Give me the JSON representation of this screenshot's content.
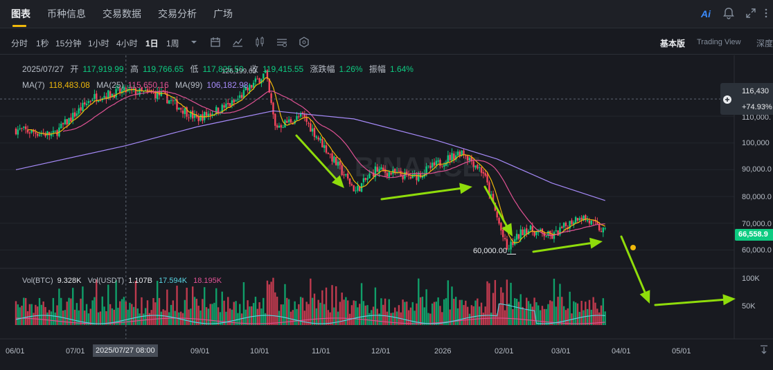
{
  "nav": {
    "tabs": [
      "图表",
      "币种信息",
      "交易数据",
      "交易分析",
      "广场"
    ],
    "active": 0,
    "ai_label": "Ai"
  },
  "toolbar": {
    "intervals": [
      "分时",
      "1秒",
      "15分钟",
      "1小时",
      "4小时",
      "1日",
      "1周"
    ],
    "active_interval": 5,
    "views": [
      "基本版",
      "Trading View",
      "深度"
    ],
    "active_view": 0
  },
  "ohlc": {
    "date": "2025/07/27",
    "open_label": "开",
    "open": "117,919.99",
    "high_label": "高",
    "high": "119,766.65",
    "low_label": "低",
    "low": "117,825.50",
    "close_label": "收",
    "close": "119,415.55",
    "change_label": "涨跌幅",
    "change": "1.26%",
    "amp_label": "振幅",
    "amp": "1.64%"
  },
  "ma": {
    "ma7_label": "MA(7)",
    "ma7": "118,483.08",
    "ma25_label": "MA(25)",
    "ma25": "115,650.16",
    "ma99_label": "MA(99)",
    "ma99": "106,182.98"
  },
  "vol": {
    "btc_label": "Vol(BTC)",
    "btc": "9.328K",
    "usdt_label": "Vol(USDT)",
    "usdt": "1.107B",
    "ma1": "17.594K",
    "ma2": "18.195K"
  },
  "price_panel": {
    "crosshair_price": "116,430",
    "crosshair_pct": "+74.93%",
    "last_price": "66,558.9"
  },
  "annotations": {
    "high_label": "126,199.63",
    "low_label": "60,000.00"
  },
  "colors": {
    "up": "#0ecb81",
    "down": "#f6465d",
    "ma7": "#f0b90b",
    "ma25": "#e05294",
    "ma99": "#a78bfa",
    "arrow": "#8fdc0b",
    "vol_ma1": "#5ad8e6",
    "vol_ma2": "#e05294"
  },
  "chart_data": {
    "type": "candlestick",
    "y_tick_labels": [
      "110,000.",
      "100,000",
      "90,000.0",
      "80,000.0",
      "70,000.0",
      "60,000.0"
    ],
    "y_ticks": [
      110000,
      100000,
      90000,
      80000,
      70000,
      60000
    ],
    "vol_tick_labels": [
      "100K",
      "50K"
    ],
    "x_tick_labels": [
      "06/01",
      "07/01",
      "2025/07/27 08:00",
      "09/01",
      "10/01",
      "11/01",
      "12/01",
      "2026",
      "02/01",
      "03/01",
      "04/01",
      "05/01"
    ],
    "trend_points": [
      [
        "2025-06-01",
        105000
      ],
      [
        "2025-06-20",
        103000
      ],
      [
        "2025-07-10",
        117000
      ],
      [
        "2025-07-27",
        119415
      ],
      [
        "2025-08-14",
        118000
      ],
      [
        "2025-09-01",
        109000
      ],
      [
        "2025-09-20",
        115000
      ],
      [
        "2025-10-06",
        126199
      ],
      [
        "2025-10-11",
        106000
      ],
      [
        "2025-10-25",
        110000
      ],
      [
        "2025-11-21",
        82000
      ],
      [
        "2025-12-01",
        90000
      ],
      [
        "2025-12-20",
        87000
      ],
      [
        "2026-01-14",
        97000
      ],
      [
        "2026-01-25",
        89000
      ],
      [
        "2026-02-06",
        60000
      ],
      [
        "2026-02-15",
        68000
      ],
      [
        "2026-03-01",
        65000
      ],
      [
        "2026-03-15",
        73000
      ],
      [
        "2026-03-28",
        66559
      ]
    ],
    "ma99_points": [
      [
        "2025-06-01",
        90000
      ],
      [
        "2025-07-27",
        99000
      ],
      [
        "2025-09-01",
        106000
      ],
      [
        "2025-10-10",
        112000
      ],
      [
        "2025-11-20",
        109000
      ],
      [
        "2026-01-01",
        101000
      ],
      [
        "2026-02-01",
        94000
      ],
      [
        "2026-03-01",
        85000
      ],
      [
        "2026-03-28",
        78500
      ]
    ]
  }
}
